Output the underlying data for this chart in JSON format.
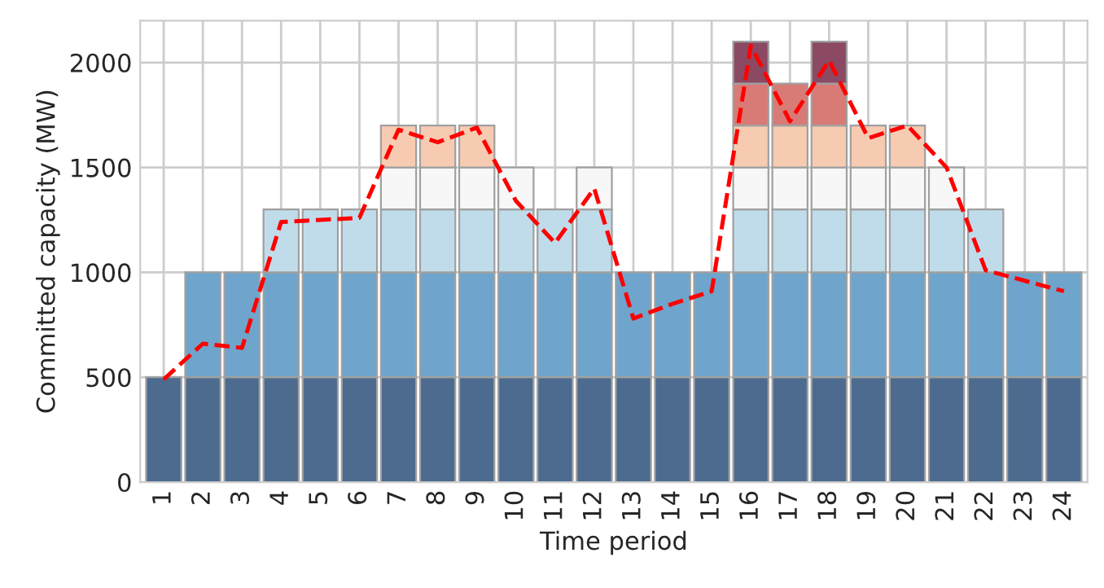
{
  "chart_data": {
    "type": "bar",
    "stacked": true,
    "xlabel": "Time period",
    "ylabel": "Committed capacity (MW)",
    "categories": [
      "1",
      "2",
      "3",
      "4",
      "5",
      "6",
      "7",
      "8",
      "9",
      "10",
      "11",
      "12",
      "13",
      "14",
      "15",
      "16",
      "17",
      "18",
      "19",
      "20",
      "21",
      "22",
      "23",
      "24"
    ],
    "ylim": [
      0,
      2200
    ],
    "yticks": [
      0,
      500,
      1000,
      1500,
      2000
    ],
    "grid": true,
    "series": [
      {
        "color": "#4d6b8f",
        "values": [
          500,
          500,
          500,
          500,
          500,
          500,
          500,
          500,
          500,
          500,
          500,
          500,
          500,
          500,
          500,
          500,
          500,
          500,
          500,
          500,
          500,
          500,
          500,
          500
        ]
      },
      {
        "color": "#6fa5cc",
        "values": [
          null,
          500,
          500,
          500,
          500,
          500,
          500,
          500,
          500,
          500,
          500,
          500,
          500,
          500,
          500,
          500,
          500,
          500,
          500,
          500,
          500,
          500,
          500,
          500
        ]
      },
      {
        "color": "#c0dcea",
        "values": [
          null,
          null,
          null,
          300,
          300,
          300,
          300,
          300,
          300,
          300,
          300,
          300,
          null,
          null,
          null,
          300,
          300,
          300,
          300,
          300,
          300,
          300,
          null,
          null
        ]
      },
      {
        "color": "#f7f7f7",
        "values": [
          null,
          null,
          null,
          null,
          null,
          null,
          200,
          200,
          200,
          200,
          null,
          200,
          null,
          null,
          null,
          200,
          200,
          200,
          200,
          200,
          200,
          null,
          null,
          null
        ]
      },
      {
        "color": "#f7cbb2",
        "values": [
          null,
          null,
          null,
          null,
          null,
          null,
          200,
          200,
          200,
          null,
          null,
          null,
          null,
          null,
          null,
          200,
          200,
          200,
          200,
          200,
          null,
          null,
          null,
          null
        ]
      },
      {
        "color": "#d87a75",
        "values": [
          null,
          null,
          null,
          null,
          null,
          null,
          null,
          null,
          null,
          null,
          null,
          null,
          null,
          null,
          null,
          200,
          200,
          200,
          null,
          null,
          null,
          null,
          null,
          null
        ]
      },
      {
        "color": "#8c4963",
        "values": [
          null,
          null,
          null,
          null,
          null,
          null,
          null,
          null,
          null,
          null,
          null,
          null,
          null,
          null,
          null,
          200,
          null,
          200,
          null,
          null,
          null,
          null,
          null,
          null
        ]
      },
      {
        "type": "line",
        "line_style": "dashed",
        "color": "#ff0000",
        "values": [
          490,
          660,
          640,
          1240,
          1250,
          1260,
          1680,
          1620,
          1690,
          1340,
          1140,
          1400,
          780,
          850,
          910,
          2080,
          1720,
          2010,
          1640,
          1700,
          1500,
          1010,
          960,
          910
        ]
      }
    ]
  }
}
